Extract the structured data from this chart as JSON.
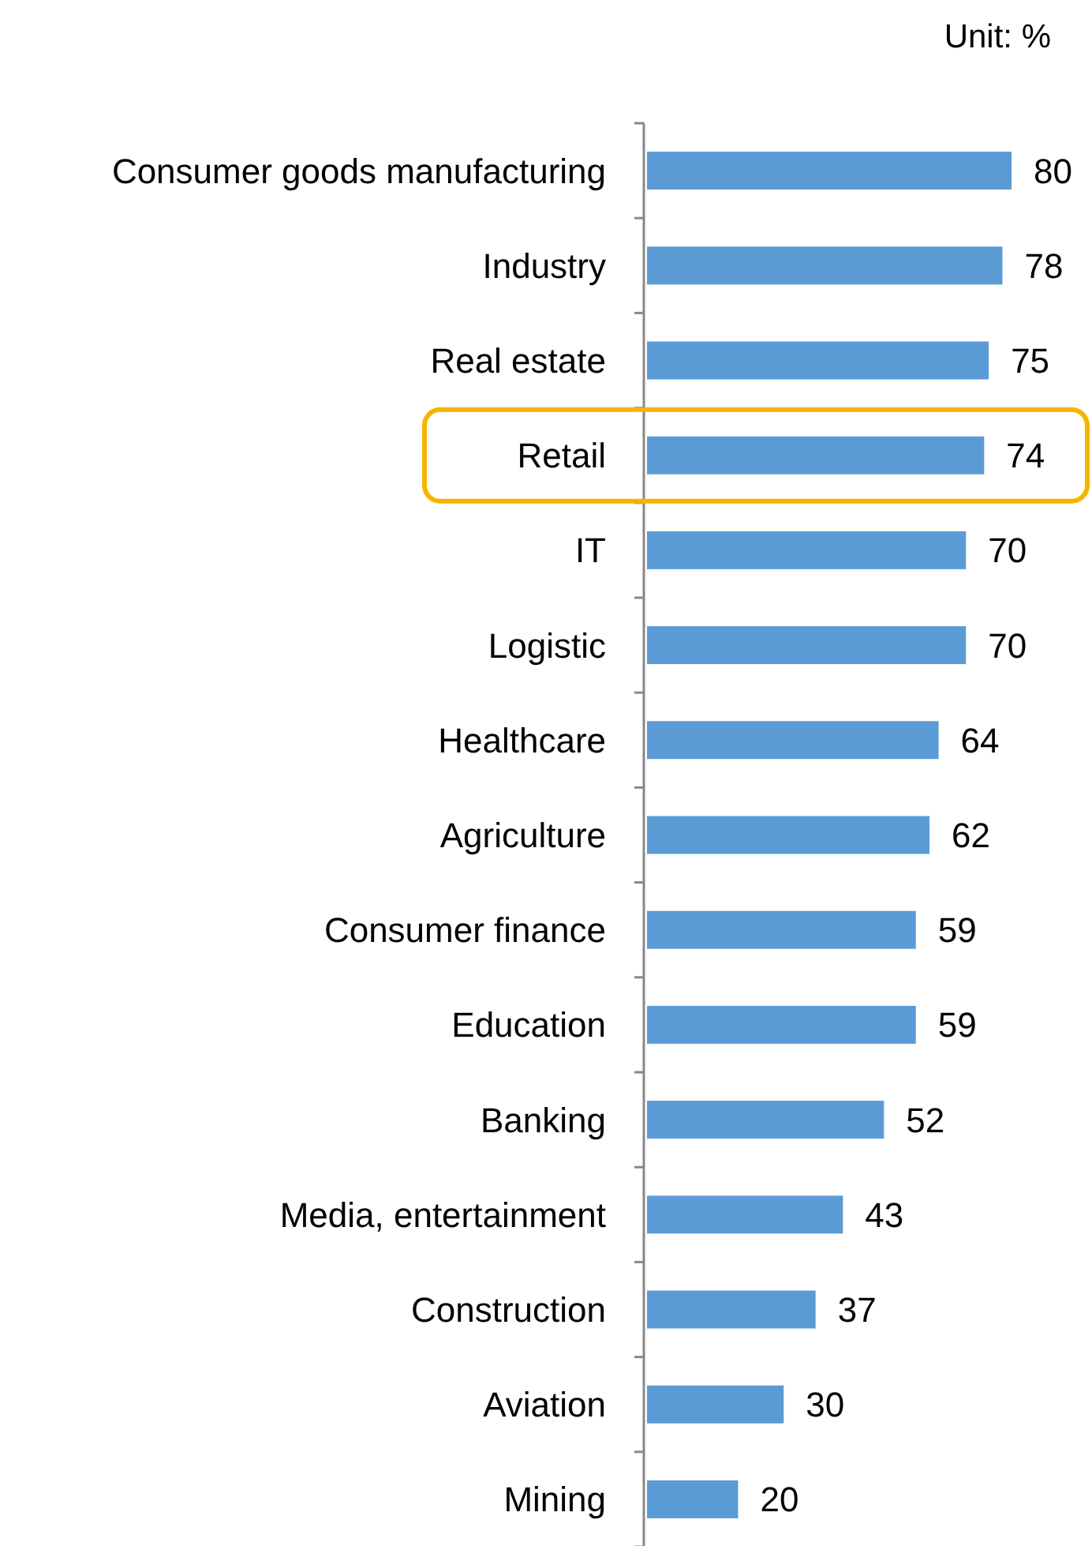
{
  "chart_data": {
    "type": "bar",
    "orientation": "horizontal",
    "categories": [
      "Consumer goods manufacturing",
      "Industry",
      "Real estate",
      "Retail",
      "IT",
      "Logistic",
      "Healthcare",
      "Agriculture",
      "Consumer finance",
      "Education",
      "Banking",
      "Media, entertainment",
      "Construction",
      "Aviation",
      "Mining"
    ],
    "values": [
      80,
      78,
      75,
      74,
      70,
      70,
      64,
      62,
      59,
      59,
      52,
      43,
      37,
      30,
      20
    ],
    "color": "#5b9bd5",
    "data_labels": true,
    "annotations": [
      "Unit: %"
    ]
  }
}
